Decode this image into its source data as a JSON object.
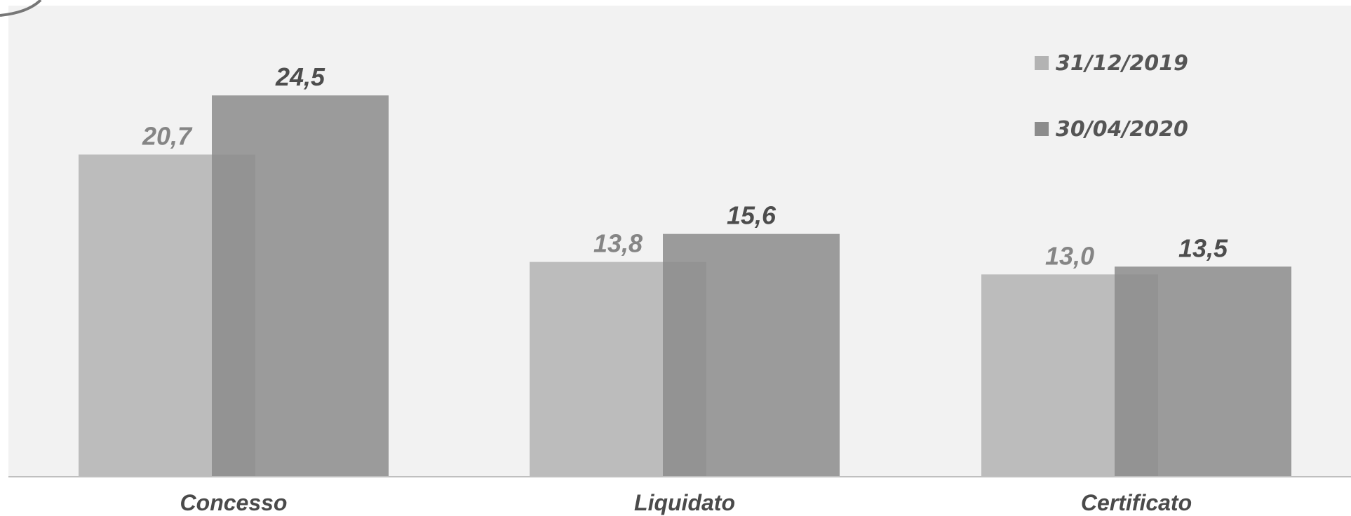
{
  "chart_data": {
    "type": "bar",
    "categories": [
      "Concesso",
      "Liquidato",
      "Certificato"
    ],
    "series": [
      {
        "name": "31/12/2019",
        "values": [
          20.7,
          13.8,
          13.0
        ],
        "labels": [
          "20,7",
          "13,8",
          "13,0"
        ],
        "color": "#b3b3b3",
        "label_color": "#858585"
      },
      {
        "name": "30/04/2020",
        "values": [
          24.5,
          15.6,
          13.5
        ],
        "labels": [
          "24,5",
          "15,6",
          "13,5"
        ],
        "color": "#8c8c8c",
        "label_color": "#4d4d4d"
      }
    ],
    "ylim": [
      0,
      30
    ],
    "grid": false,
    "legend_position": "top-right",
    "plot_background": "#f2f2f2",
    "axis_color": "#bfbfbf"
  }
}
